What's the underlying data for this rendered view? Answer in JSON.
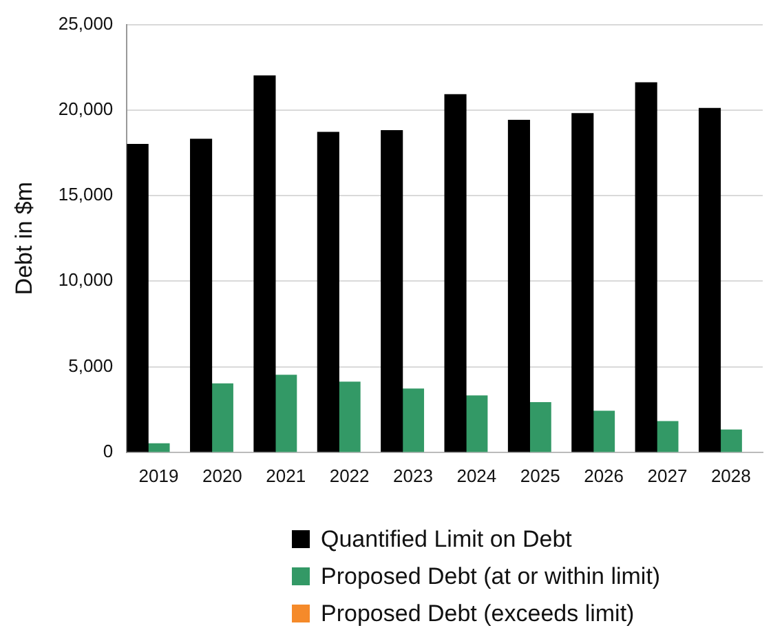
{
  "chart_data": {
    "type": "bar",
    "ylabel": "Debt in $m",
    "categories": [
      "2019",
      "2020",
      "2021",
      "2022",
      "2023",
      "2024",
      "2025",
      "2026",
      "2027",
      "2028"
    ],
    "series": [
      {
        "name": "Quantified Limit on Debt",
        "color": "#000000",
        "values": [
          18000,
          18300,
          22000,
          18700,
          18800,
          20900,
          19400,
          19800,
          21600,
          20100
        ]
      },
      {
        "name": "Proposed Debt (at or within limit)",
        "color": "#339966",
        "values": [
          500,
          4000,
          4500,
          4100,
          3700,
          3300,
          2900,
          2400,
          1800,
          1300
        ]
      },
      {
        "name": "Proposed Debt (exceeds limit)",
        "color": "#f58a2a",
        "values": [
          null,
          null,
          null,
          null,
          null,
          null,
          null,
          null,
          null,
          null
        ]
      }
    ],
    "ylim": [
      0,
      25000
    ],
    "yticks": [
      0,
      {
        "value": 5000,
        "label": "5,000"
      },
      {
        "value": 10000,
        "label": "10,000"
      },
      {
        "value": 15000,
        "label": "15,000"
      },
      {
        "value": 20000,
        "label": "20,000"
      },
      {
        "value": 25000,
        "label": "25,000"
      }
    ],
    "grid": "y",
    "legend": "bottom"
  }
}
